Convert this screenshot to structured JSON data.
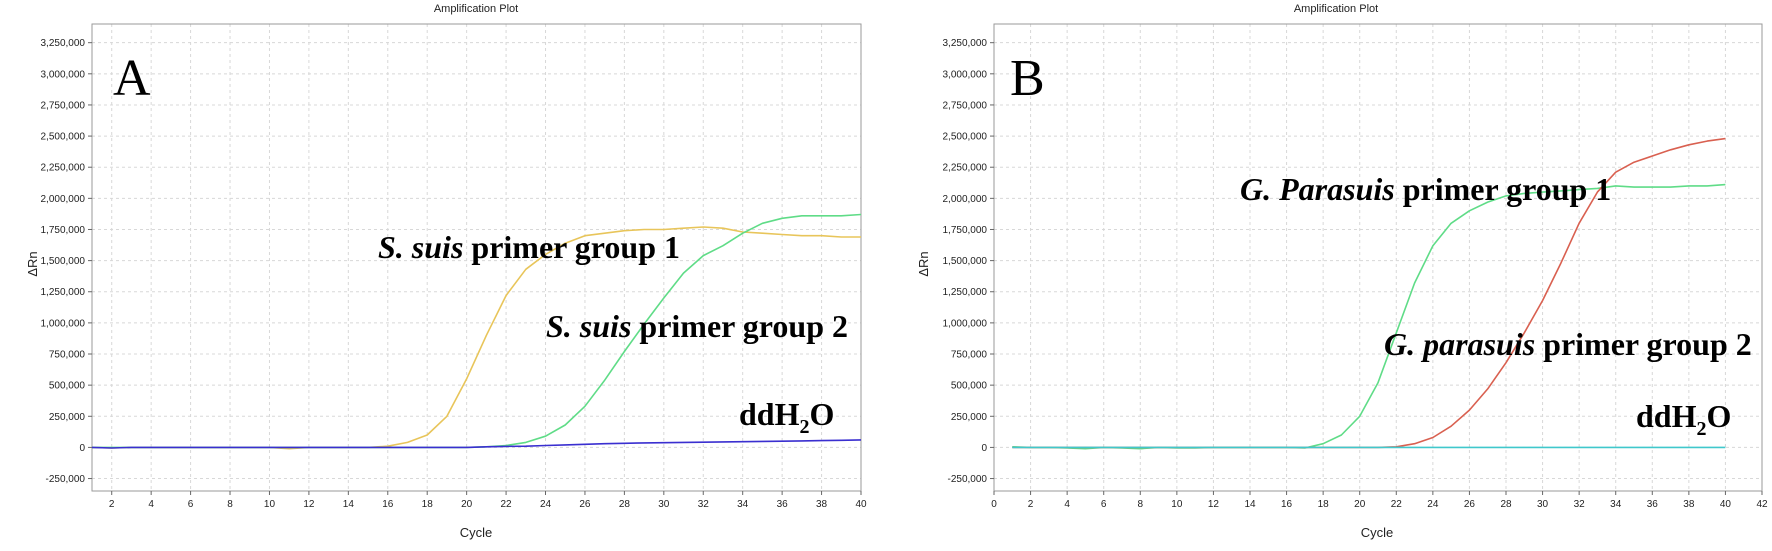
{
  "chart_data": [
    {
      "type": "line",
      "panel": "A",
      "title": "Amplification Plot",
      "xlabel": "Cycle",
      "ylabel": "ΔRn",
      "xlim": [
        1,
        40
      ],
      "ylim": [
        -350000,
        3400000
      ],
      "grid": true,
      "x_ticks": [
        "2",
        "4",
        "6",
        "8",
        "10",
        "12",
        "14",
        "16",
        "18",
        "20",
        "22",
        "24",
        "26",
        "28",
        "30",
        "32",
        "34",
        "36",
        "38",
        "40"
      ],
      "y_ticks": [
        "-250,000",
        "0",
        "250,000",
        "500,000",
        "750,000",
        "1,000,000",
        "1,250,000",
        "1,500,000",
        "1,750,000",
        "2,000,000",
        "2,250,000",
        "2,500,000",
        "2,750,000",
        "3,000,000",
        "3,250,000"
      ],
      "x": [
        1,
        2,
        3,
        4,
        5,
        6,
        7,
        8,
        9,
        10,
        11,
        12,
        13,
        14,
        15,
        16,
        17,
        18,
        19,
        20,
        21,
        22,
        23,
        24,
        25,
        26,
        27,
        28,
        29,
        30,
        31,
        32,
        33,
        34,
        35,
        36,
        37,
        38,
        39,
        40
      ],
      "series": [
        {
          "color": "#e8c55a",
          "values": [
            0,
            -5000,
            0,
            0,
            0,
            0,
            0,
            0,
            0,
            0,
            -10000,
            0,
            0,
            0,
            0,
            10000,
            40000,
            100000,
            250000,
            550000,
            900000,
            1220000,
            1430000,
            1550000,
            1640000,
            1700000,
            1720000,
            1740000,
            1750000,
            1750000,
            1760000,
            1770000,
            1760000,
            1730000,
            1720000,
            1710000,
            1700000,
            1700000,
            1690000,
            1690000
          ]
        },
        {
          "color": "#5fdc87",
          "values": [
            0,
            0,
            0,
            0,
            0,
            0,
            0,
            0,
            0,
            0,
            0,
            0,
            0,
            0,
            0,
            0,
            0,
            0,
            0,
            0,
            5000,
            15000,
            40000,
            90000,
            180000,
            330000,
            540000,
            770000,
            990000,
            1200000,
            1400000,
            1540000,
            1620000,
            1720000,
            1800000,
            1840000,
            1860000,
            1860000,
            1860000,
            1870000
          ]
        },
        {
          "color": "#3a2fd0",
          "values": [
            0,
            -5000,
            0,
            0,
            0,
            0,
            0,
            0,
            0,
            0,
            0,
            0,
            0,
            0,
            0,
            0,
            0,
            0,
            0,
            0,
            5000,
            8000,
            10000,
            15000,
            20000,
            25000,
            30000,
            33000,
            36000,
            38000,
            40000,
            42000,
            44000,
            46000,
            48000,
            50000,
            52000,
            55000,
            57000,
            60000
          ]
        }
      ],
      "annotations": [
        {
          "italic": "S. suis",
          "text": " primer group 1"
        },
        {
          "italic": "S. suis",
          "text": " primer group 2"
        },
        {
          "base": "ddH",
          "sub": "2",
          "tail": "O"
        }
      ]
    },
    {
      "type": "line",
      "panel": "B",
      "title": "Amplification Plot",
      "xlabel": "Cycle",
      "ylabel": "ΔRn",
      "xlim": [
        0,
        42
      ],
      "ylim": [
        -350000,
        3400000
      ],
      "grid": true,
      "x_ticks": [
        "0",
        "2",
        "4",
        "6",
        "8",
        "10",
        "12",
        "14",
        "16",
        "18",
        "20",
        "22",
        "24",
        "26",
        "28",
        "30",
        "32",
        "34",
        "36",
        "38",
        "40",
        "42"
      ],
      "y_ticks": [
        "-250,000",
        "0",
        "250,000",
        "500,000",
        "750,000",
        "1,000,000",
        "1,250,000",
        "1,500,000",
        "1,750,000",
        "2,000,000",
        "2,250,000",
        "2,500,000",
        "2,750,000",
        "3,000,000",
        "3,250,000"
      ],
      "x": [
        1,
        2,
        3,
        4,
        5,
        6,
        7,
        8,
        9,
        10,
        11,
        12,
        13,
        14,
        15,
        16,
        17,
        18,
        19,
        20,
        21,
        22,
        23,
        24,
        25,
        26,
        27,
        28,
        29,
        30,
        31,
        32,
        33,
        34,
        35,
        36,
        37,
        38,
        39,
        40
      ],
      "series": [
        {
          "color": "#5fdc87",
          "values": [
            5000,
            0,
            0,
            -5000,
            -10000,
            0,
            -5000,
            -10000,
            0,
            -5000,
            -5000,
            0,
            0,
            0,
            0,
            0,
            -5000,
            30000,
            100000,
            250000,
            520000,
            920000,
            1320000,
            1620000,
            1800000,
            1900000,
            1970000,
            2020000,
            2040000,
            2050000,
            2060000,
            2070000,
            2080000,
            2100000,
            2090000,
            2090000,
            2090000,
            2100000,
            2100000,
            2110000
          ]
        },
        {
          "color": "#d96050",
          "values": [
            0,
            0,
            0,
            0,
            0,
            0,
            0,
            0,
            0,
            0,
            0,
            0,
            0,
            0,
            0,
            0,
            0,
            0,
            0,
            0,
            0,
            5000,
            30000,
            80000,
            170000,
            300000,
            470000,
            680000,
            920000,
            1180000,
            1480000,
            1800000,
            2050000,
            2210000,
            2290000,
            2340000,
            2390000,
            2430000,
            2460000,
            2480000
          ]
        },
        {
          "color": "#40c8cc",
          "values": [
            0,
            0,
            0,
            0,
            0,
            0,
            0,
            0,
            0,
            0,
            0,
            0,
            0,
            0,
            0,
            0,
            0,
            0,
            0,
            0,
            0,
            0,
            0,
            0,
            0,
            0,
            0,
            0,
            0,
            0,
            0,
            0,
            0,
            0,
            0,
            0,
            0,
            0,
            0,
            0
          ]
        }
      ],
      "annotations": [
        {
          "italic": "G. Parasuis",
          "text": " primer group 1"
        },
        {
          "italic": "G. parasuis",
          "text": " primer group 2"
        },
        {
          "base": "ddH",
          "sub": "2",
          "tail": "O"
        }
      ]
    }
  ]
}
